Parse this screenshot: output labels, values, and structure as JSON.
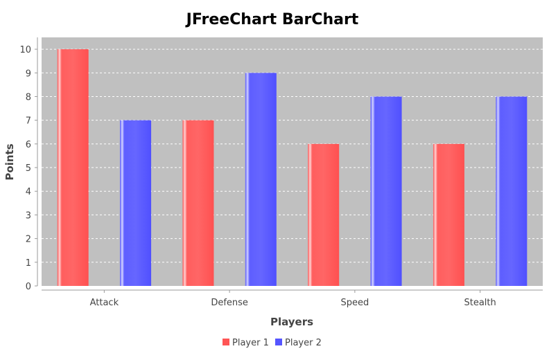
{
  "chart_data": {
    "type": "bar",
    "title": "JFreeChart BarChart",
    "xlabel": "Players",
    "ylabel": "Points",
    "categories": [
      "Attack",
      "Defense",
      "Speed",
      "Stealth"
    ],
    "series": [
      {
        "name": "Player 1",
        "color": "#ff5555",
        "values": [
          10,
          7,
          6,
          6
        ]
      },
      {
        "name": "Player 2",
        "color": "#5555ff",
        "values": [
          7,
          9,
          8,
          8
        ]
      }
    ],
    "ylim": [
      0,
      10.5
    ],
    "yticks": [
      "0",
      "1",
      "2",
      "3",
      "4",
      "5",
      "6",
      "7",
      "8",
      "9",
      "10"
    ],
    "grid": true,
    "legend": "bottom",
    "plot_background": "#c0c0c0"
  }
}
